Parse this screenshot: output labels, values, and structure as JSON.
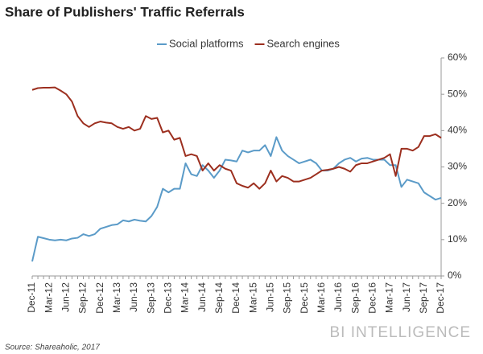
{
  "chart_data": {
    "type": "line",
    "title": "Share of Publishers' Traffic Referrals",
    "source": "Source: Shareaholic, 2017",
    "branding": "BI INTELLIGENCE",
    "categories": [
      "Dec-11",
      null,
      null,
      "Mar-12",
      null,
      null,
      "Jun-12",
      null,
      null,
      "Sep-12",
      null,
      null,
      "Dec-12",
      null,
      null,
      "Mar-13",
      null,
      null,
      "Jun-13",
      null,
      null,
      "Sep-13",
      null,
      null,
      "Dec-13",
      null,
      null,
      "Mar-14",
      null,
      null,
      "Jun-14",
      null,
      null,
      "Sep-14",
      null,
      null,
      "Dec-14",
      null,
      null,
      "Mar-15",
      null,
      null,
      "Jun-15",
      null,
      null,
      "Sep-15",
      null,
      null,
      "Dec-15",
      null,
      null,
      "Mar-16",
      null,
      null,
      "Jun-16",
      null,
      null,
      "Sep-16",
      null,
      null,
      "Dec-16",
      null,
      null,
      "Mar-17",
      null,
      null,
      "Jun-17",
      null,
      null,
      "Sep-17",
      null,
      null,
      "Dec-17"
    ],
    "series": [
      {
        "name": "Social platforms",
        "color": "#5b9bc8",
        "values": [
          4,
          10.8,
          10.4,
          10,
          9.8,
          10,
          9.8,
          10.3,
          10.5,
          11.5,
          11,
          11.5,
          13,
          13.5,
          14,
          14.2,
          15.3,
          15,
          15.5,
          15.2,
          15,
          16.5,
          19,
          24,
          23,
          24,
          24,
          31,
          28,
          27.5,
          30.5,
          29,
          27,
          29,
          32,
          31.8,
          31.5,
          34.5,
          34,
          34.5,
          34.5,
          36,
          33,
          38.2,
          34.5,
          33,
          32,
          31,
          31.5,
          32,
          31,
          29,
          29,
          29.5,
          31,
          32,
          32.5,
          31.5,
          32.3,
          32.5,
          32,
          32,
          32,
          30.5,
          30.5,
          24.5,
          26.5,
          26,
          25.5,
          23,
          22,
          21,
          21.5
        ]
      },
      {
        "name": "Search engines",
        "color": "#9c2f1f",
        "values": [
          51.2,
          51.7,
          51.8,
          51.8,
          51.9,
          51,
          50,
          48,
          44,
          42,
          41,
          42,
          42.5,
          42.2,
          42,
          41,
          40.5,
          41,
          40,
          40.5,
          44,
          43.2,
          43.5,
          39.5,
          40,
          37.5,
          38,
          33,
          33.5,
          33,
          29,
          31,
          29,
          30.5,
          29.5,
          29,
          25.5,
          24.8,
          24.3,
          25.5,
          24,
          25.5,
          29,
          26,
          27.5,
          27,
          26,
          26,
          26.5,
          27,
          28,
          29,
          29.2,
          29.5,
          30,
          29.5,
          28.7,
          30.5,
          31,
          31,
          31.5,
          32,
          32.5,
          33.5,
          27.5,
          35,
          35,
          34.5,
          35.5,
          38.5,
          38.5,
          39,
          38
        ]
      }
    ],
    "ylim": [
      0,
      60
    ],
    "yticks": [
      {
        "value": 0,
        "label": "0%"
      },
      {
        "value": 10,
        "label": "10%"
      },
      {
        "value": 20,
        "label": "20%"
      },
      {
        "value": 30,
        "label": "30%"
      },
      {
        "value": 40,
        "label": "40%"
      },
      {
        "value": 50,
        "label": "50%"
      },
      {
        "value": 60,
        "label": "60%"
      }
    ],
    "grid": false
  }
}
